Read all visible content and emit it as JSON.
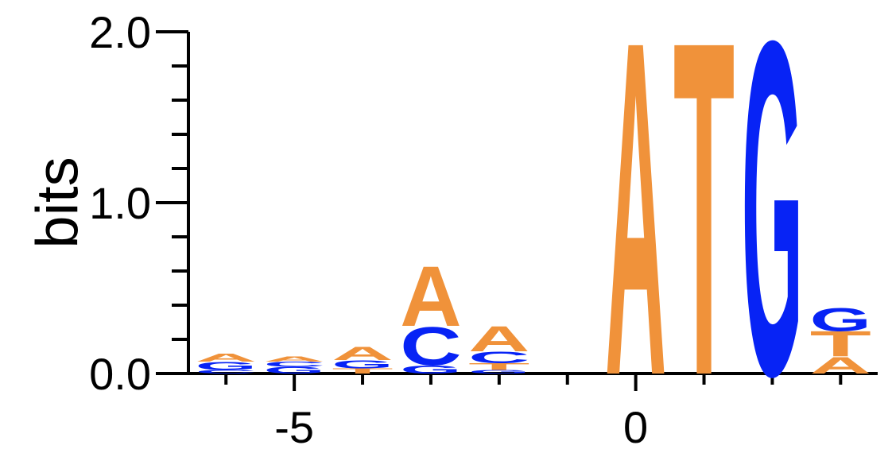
{
  "chart_data": {
    "type": "sequence-logo",
    "y_label": "bits",
    "colors": {
      "A": "#f0923a",
      "T": "#f0923a",
      "C": "#0723f5",
      "G": "#0723f5"
    },
    "x": [
      -6,
      -5,
      -4,
      -3,
      -2,
      -1,
      0,
      1,
      2,
      3
    ],
    "stacks": [
      [
        {
          "letter": "C",
          "height": 0.02
        },
        {
          "letter": "G",
          "height": 0.05
        },
        {
          "letter": "A",
          "height": 0.05
        }
      ],
      [
        {
          "letter": "G",
          "height": 0.04
        },
        {
          "letter": "C",
          "height": 0.03
        },
        {
          "letter": "A",
          "height": 0.03
        }
      ],
      [
        {
          "letter": "T",
          "height": 0.03
        },
        {
          "letter": "G",
          "height": 0.05
        },
        {
          "letter": "A",
          "height": 0.08
        }
      ],
      [
        {
          "letter": "G",
          "height": 0.05
        },
        {
          "letter": "C",
          "height": 0.23
        },
        {
          "letter": "A",
          "height": 0.36
        }
      ],
      [
        {
          "letter": "G",
          "height": 0.02
        },
        {
          "letter": "T",
          "height": 0.04
        },
        {
          "letter": "C",
          "height": 0.07
        },
        {
          "letter": "A",
          "height": 0.15
        }
      ],
      [],
      [
        {
          "letter": "A",
          "height": 2.0
        }
      ],
      [
        {
          "letter": "T",
          "height": 2.0
        }
      ],
      [
        {
          "letter": "G",
          "height": 2.0
        }
      ],
      [
        {
          "letter": "A",
          "height": 0.1
        },
        {
          "letter": "T",
          "height": 0.15
        },
        {
          "letter": "G",
          "height": 0.14
        }
      ]
    ],
    "xlim": [
      -6.55,
      3.52
    ],
    "xticks": [
      -5,
      0
    ],
    "xminor_ticks": [
      -6,
      -4,
      -3,
      -2,
      -1,
      1,
      2,
      3
    ],
    "ylim": [
      0,
      2.0
    ],
    "yticks": [
      {
        "value": 0,
        "label": "0.0"
      },
      {
        "value": 1,
        "label": "1.0"
      },
      {
        "value": 2,
        "label": "2.0"
      }
    ],
    "yminor_ticks": [
      0.2,
      0.4,
      0.6,
      0.8,
      1.2,
      1.4,
      1.6,
      1.8
    ]
  }
}
